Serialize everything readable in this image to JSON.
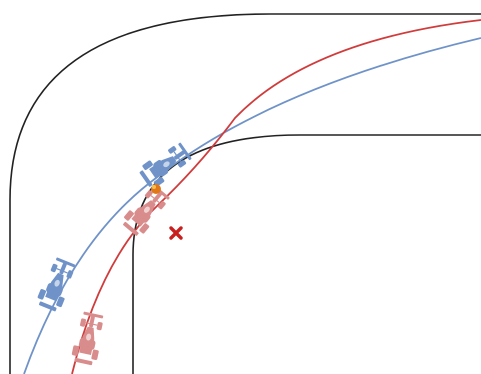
{
  "diagram": {
    "colors": {
      "background": "#ffffff",
      "track_edge": "#222222",
      "blue_line": "#6f93c8",
      "blue_car": "#6f93c8",
      "red_line": "#d03c3c",
      "red_car": "#d98c8c",
      "contact_orange": "#e0781a",
      "apex_marker": "#c81f1f"
    },
    "icons": {
      "blue_car": "race-car-icon",
      "red_car": "race-car-icon",
      "apex_marker": "cross-mark-icon",
      "contact_point": "collision-icon"
    }
  }
}
